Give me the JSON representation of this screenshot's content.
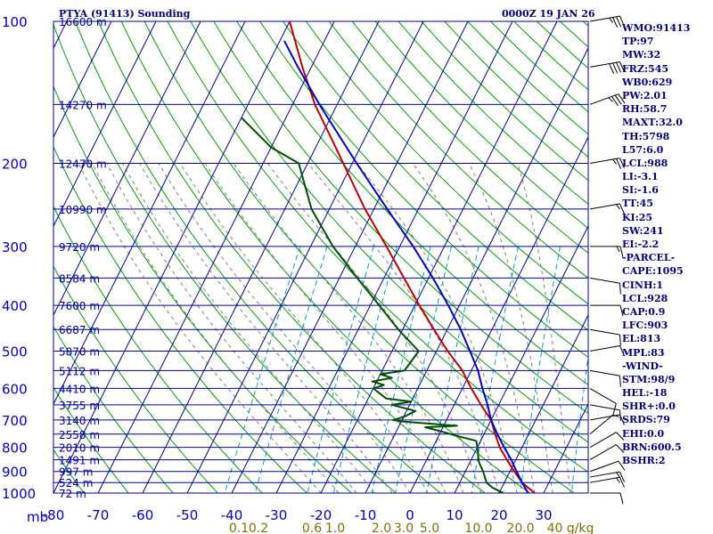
{
  "header": {
    "station_title": "PTYA (91413) Sounding",
    "time_label": "0000Z 19 JAN 26"
  },
  "stats_panel": [
    "WMO:91413",
    "TP:97",
    "MW:32",
    "FRZ:545",
    "WB0:629",
    "PW:2.01",
    "RH:58.7",
    "MAXT:32.0",
    "TH:5798",
    "L57:6.0",
    "LCL:988",
    "LI:-3.1",
    "SI:-1.6",
    "TT:45",
    "KI:25",
    "SW:241",
    "EI:-2.2",
    "-PARCEL-",
    "CAPE:1095",
    "CINH:1",
    "LCL:928",
    "CAP:0.9",
    "LFC:903",
    "EL:813",
    "MPL:83",
    "-WIND-",
    "STM:98/9",
    "HEL:-18",
    "SHR+:0.0",
    "SRDS:79",
    "EHI:0.0",
    "BRN:600.5",
    "BSHR:2"
  ],
  "colors": {
    "background": "#ffffff",
    "grid": "#0000a0",
    "axis_text": "#0000c0",
    "mixing_ratio_text": "#807000",
    "dry_adiabat": "#00a000",
    "moist_adiabat": "#808080",
    "mixing_ratio_line": "#00a0c0",
    "temperature": "#c00000",
    "dewpoint": "#005000",
    "parcel": "#0000c0",
    "wind_barb": "#000000"
  },
  "chart_data": {
    "type": "line",
    "title": "PTYA (91413) Sounding",
    "xlabel": "",
    "ylabel": "",
    "y_scale": "log",
    "pressure_range_mb": [
      100,
      1000
    ],
    "temperature_range_c": [
      -80,
      40
    ],
    "pressure_ticks": [
      100,
      200,
      300,
      400,
      500,
      600,
      700,
      800,
      900,
      1000
    ],
    "temperature_ticks": [
      -80,
      -70,
      -60,
      -50,
      -40,
      -30,
      -20,
      -10,
      0,
      10,
      20,
      30
    ],
    "pressure_axis_unit_label": "mb",
    "height_labels": [
      {
        "p": 100,
        "label": "16600 m"
      },
      {
        "p": 150,
        "label": "14270 m"
      },
      {
        "p": 200,
        "label": "12470 m"
      },
      {
        "p": 250,
        "label": "10990 m"
      },
      {
        "p": 300,
        "label": "9720 m"
      },
      {
        "p": 350,
        "label": "8584 m"
      },
      {
        "p": 400,
        "label": "7600 m"
      },
      {
        "p": 450,
        "label": "6687 m"
      },
      {
        "p": 500,
        "label": "5870 m"
      },
      {
        "p": 550,
        "label": "5112 m"
      },
      {
        "p": 600,
        "label": "4410 m"
      },
      {
        "p": 650,
        "label": "3755 m"
      },
      {
        "p": 700,
        "label": "3140 m"
      },
      {
        "p": 750,
        "label": "2558 m"
      },
      {
        "p": 800,
        "label": "2010 m"
      },
      {
        "p": 850,
        "label": "1491 m"
      },
      {
        "p": 900,
        "label": "997 m"
      },
      {
        "p": 950,
        "label": "524 m"
      },
      {
        "p": 1000,
        "label": "72 m"
      }
    ],
    "mixing_ratio_labels": [
      "0.1",
      "0.2",
      "0.6",
      "1.0",
      "2.0",
      "3.0",
      "5.0",
      "10.0",
      "20.0",
      "40 g/kg"
    ],
    "mixing_ratio_values": [
      0.1,
      0.2,
      0.6,
      1.0,
      2.0,
      3.0,
      5.0,
      10.0,
      20.0,
      40.0
    ],
    "series": [
      {
        "name": "",
        "line_color": "#c00000",
        "points": [
          [
            1000,
            28
          ],
          [
            975,
            26
          ],
          [
            950,
            24
          ],
          [
            925,
            22.5
          ],
          [
            900,
            21
          ],
          [
            850,
            18
          ],
          [
            800,
            15
          ],
          [
            750,
            12.5
          ],
          [
            700,
            10
          ],
          [
            650,
            6
          ],
          [
            600,
            2
          ],
          [
            550,
            -2
          ],
          [
            500,
            -7.5
          ],
          [
            450,
            -13
          ],
          [
            400,
            -19
          ],
          [
            350,
            -25.5
          ],
          [
            300,
            -33
          ],
          [
            250,
            -42
          ],
          [
            200,
            -52
          ],
          [
            150,
            -65
          ],
          [
            125,
            -72
          ],
          [
            100,
            -80
          ]
        ]
      },
      {
        "name": "",
        "line_color": "#005000",
        "points": [
          [
            1000,
            21
          ],
          [
            975,
            18
          ],
          [
            950,
            16
          ],
          [
            925,
            15
          ],
          [
            900,
            14
          ],
          [
            860,
            12
          ],
          [
            830,
            11
          ],
          [
            800,
            10
          ],
          [
            775,
            9
          ],
          [
            760,
            5
          ],
          [
            740,
            0
          ],
          [
            725,
            -4
          ],
          [
            720,
            3
          ],
          [
            705,
            -10
          ],
          [
            700,
            -12
          ],
          [
            690,
            -10
          ],
          [
            670,
            -8
          ],
          [
            650,
            -14
          ],
          [
            640,
            -10
          ],
          [
            630,
            -16
          ],
          [
            600,
            -20
          ],
          [
            590,
            -18
          ],
          [
            580,
            -21
          ],
          [
            570,
            -17
          ],
          [
            560,
            -20
          ],
          [
            550,
            -15
          ],
          [
            500,
            -14
          ],
          [
            450,
            -21
          ],
          [
            400,
            -28
          ],
          [
            350,
            -36
          ],
          [
            300,
            -45
          ],
          [
            250,
            -54
          ],
          [
            200,
            -62
          ],
          [
            185,
            -70
          ],
          [
            160,
            -80
          ]
        ]
      },
      {
        "name": "",
        "line_color": "#0000c0",
        "points": [
          [
            1000,
            26.5
          ],
          [
            950,
            24
          ],
          [
            900,
            21.5
          ],
          [
            850,
            19
          ],
          [
            800,
            16
          ],
          [
            750,
            13
          ],
          [
            700,
            10
          ],
          [
            650,
            7.5
          ],
          [
            600,
            4.5
          ],
          [
            550,
            1.5
          ],
          [
            500,
            -2.5
          ],
          [
            450,
            -7
          ],
          [
            400,
            -12.5
          ],
          [
            350,
            -19
          ],
          [
            300,
            -27
          ],
          [
            250,
            -37
          ],
          [
            200,
            -49
          ],
          [
            150,
            -64
          ],
          [
            125,
            -73
          ],
          [
            110,
            -79
          ]
        ]
      }
    ],
    "wind_barbs_kt": [
      {
        "p": 1000,
        "dir": 90,
        "spd": 10
      },
      {
        "p": 950,
        "dir": 80,
        "spd": 15
      },
      {
        "p": 925,
        "dir": 80,
        "spd": 15
      },
      {
        "p": 900,
        "dir": 70,
        "spd": 10
      },
      {
        "p": 850,
        "dir": 60,
        "spd": 10
      },
      {
        "p": 800,
        "dir": 60,
        "spd": 10
      },
      {
        "p": 750,
        "dir": 50,
        "spd": 5
      },
      {
        "p": 700,
        "dir": 80,
        "spd": 10
      },
      {
        "p": 650,
        "dir": 100,
        "spd": 10
      },
      {
        "p": 600,
        "dir": 120,
        "spd": 10
      },
      {
        "p": 550,
        "dir": 100,
        "spd": 10
      },
      {
        "p": 500,
        "dir": 80,
        "spd": 10
      },
      {
        "p": 450,
        "dir": 100,
        "spd": 10
      },
      {
        "p": 400,
        "dir": 90,
        "spd": 10
      },
      {
        "p": 350,
        "dir": 100,
        "spd": 10
      },
      {
        "p": 300,
        "dir": 90,
        "spd": 15
      },
      {
        "p": 250,
        "dir": 80,
        "spd": 15
      },
      {
        "p": 200,
        "dir": 80,
        "spd": 25
      },
      {
        "p": 150,
        "dir": 70,
        "spd": 35
      },
      {
        "p": 125,
        "dir": 80,
        "spd": 40
      },
      {
        "p": 100,
        "dir": 80,
        "spd": 35
      }
    ]
  }
}
